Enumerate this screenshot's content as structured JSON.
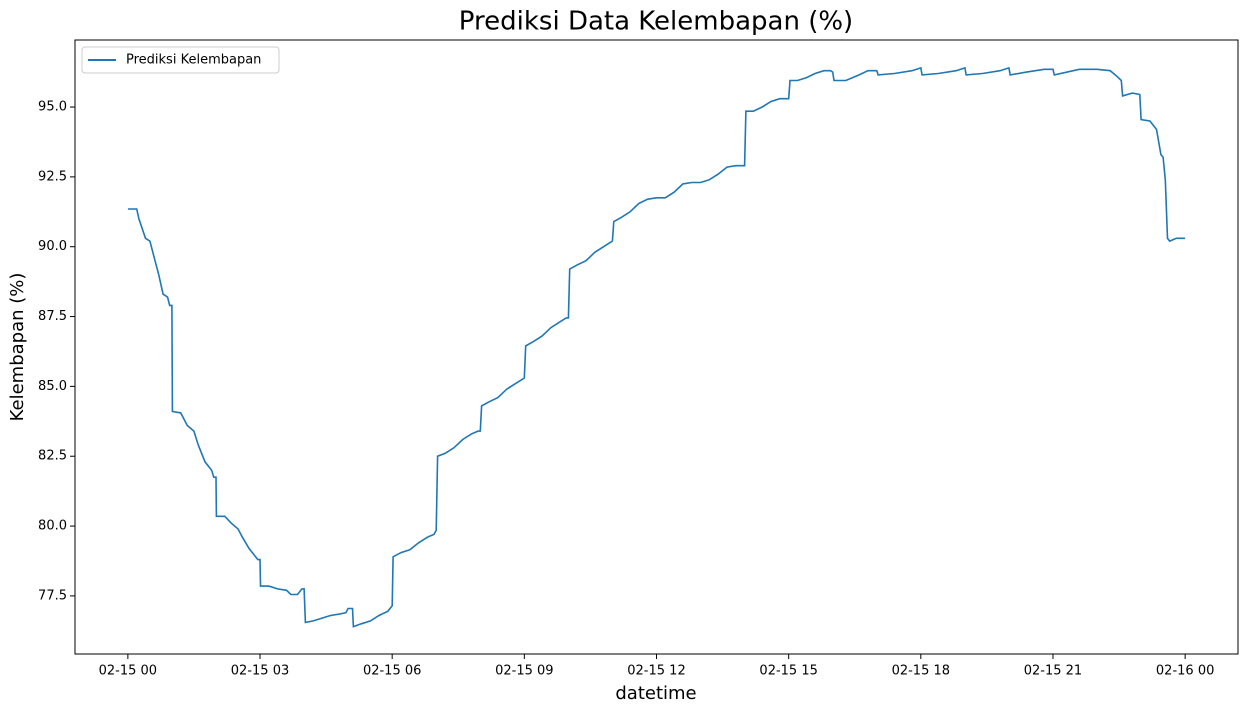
{
  "chart_data": {
    "type": "line",
    "title": "Prediksi Data Kelembapan (%)",
    "x_label": "datetime",
    "y_label": "Kelembapan (%)",
    "series": [
      {
        "name": "Prediksi Kelembapan",
        "color": "#1f77b4",
        "x": [
          0,
          0.2,
          0.25,
          0.4,
          0.5,
          0.6,
          0.7,
          0.8,
          0.9,
          0.95,
          1.0,
          1.01,
          1.2,
          1.35,
          1.5,
          1.6,
          1.75,
          1.9,
          1.95,
          2.0,
          2.01,
          2.2,
          2.35,
          2.5,
          2.6,
          2.75,
          2.9,
          2.95,
          3.0,
          3.01,
          3.2,
          3.4,
          3.6,
          3.7,
          3.85,
          3.95,
          4.0,
          4.03,
          4.2,
          4.4,
          4.6,
          4.8,
          4.95,
          5.0,
          5.1,
          5.12,
          5.3,
          5.5,
          5.7,
          5.9,
          6.0,
          6.02,
          6.2,
          6.4,
          6.6,
          6.8,
          6.95,
          7.0,
          7.03,
          7.2,
          7.4,
          7.6,
          7.8,
          7.95,
          8.0,
          8.03,
          8.2,
          8.4,
          8.6,
          8.8,
          9.0,
          9.03,
          9.2,
          9.4,
          9.6,
          9.8,
          9.95,
          10.0,
          10.03,
          10.2,
          10.4,
          10.6,
          10.8,
          11.0,
          11.03,
          11.2,
          11.4,
          11.6,
          11.8,
          12.0,
          12.2,
          12.4,
          12.6,
          12.8,
          13.0,
          13.2,
          13.4,
          13.6,
          13.8,
          14.0,
          14.03,
          14.2,
          14.4,
          14.6,
          14.8,
          15.0,
          15.03,
          15.2,
          15.4,
          15.6,
          15.8,
          15.95,
          16.0,
          16.03,
          16.3,
          16.6,
          16.8,
          17.0,
          17.03,
          17.4,
          17.8,
          18.0,
          18.03,
          18.4,
          18.8,
          19.0,
          19.03,
          19.4,
          19.8,
          20.0,
          20.03,
          20.4,
          20.8,
          21.0,
          21.03,
          21.6,
          22.0,
          22.3,
          22.45,
          22.55,
          22.58,
          22.8,
          22.97,
          23.0,
          23.2,
          23.35,
          23.45,
          23.5,
          23.55,
          23.6,
          23.65,
          23.8,
          24.0
        ],
        "values": [
          91.35,
          91.35,
          91.0,
          90.3,
          90.2,
          89.6,
          89.0,
          88.3,
          88.2,
          87.9,
          87.9,
          84.1,
          84.05,
          83.6,
          83.4,
          82.9,
          82.3,
          82.0,
          81.75,
          81.75,
          80.35,
          80.35,
          80.1,
          79.9,
          79.6,
          79.2,
          78.9,
          78.8,
          78.8,
          77.85,
          77.85,
          77.75,
          77.7,
          77.55,
          77.55,
          77.75,
          77.75,
          76.55,
          76.6,
          76.7,
          76.8,
          76.85,
          76.9,
          77.05,
          77.05,
          76.4,
          76.5,
          76.6,
          76.8,
          76.95,
          77.15,
          78.9,
          79.05,
          79.15,
          79.4,
          79.6,
          79.7,
          79.85,
          82.5,
          82.6,
          82.8,
          83.1,
          83.3,
          83.4,
          83.4,
          84.3,
          84.45,
          84.6,
          84.9,
          85.1,
          85.3,
          86.45,
          86.6,
          86.8,
          87.1,
          87.3,
          87.45,
          87.45,
          89.2,
          89.35,
          89.5,
          89.8,
          90.0,
          90.2,
          90.9,
          91.05,
          91.25,
          91.55,
          91.7,
          91.75,
          91.75,
          91.95,
          92.25,
          92.3,
          92.3,
          92.4,
          92.6,
          92.85,
          92.9,
          92.9,
          94.85,
          94.85,
          95.0,
          95.2,
          95.3,
          95.3,
          95.95,
          95.95,
          96.05,
          96.2,
          96.3,
          96.3,
          96.25,
          95.95,
          95.95,
          96.15,
          96.3,
          96.3,
          96.15,
          96.2,
          96.3,
          96.4,
          96.15,
          96.2,
          96.3,
          96.4,
          96.15,
          96.2,
          96.3,
          96.4,
          96.15,
          96.25,
          96.35,
          96.35,
          96.15,
          96.35,
          96.35,
          96.3,
          96.1,
          95.95,
          95.4,
          95.5,
          95.45,
          94.55,
          94.5,
          94.2,
          93.3,
          93.2,
          92.4,
          90.3,
          90.2,
          90.3,
          90.3
        ]
      }
    ],
    "xlim": [
      -1.2,
      25.2
    ],
    "xticks": [
      {
        "value": 0,
        "label": "02-15 00"
      },
      {
        "value": 3,
        "label": "02-15 03"
      },
      {
        "value": 6,
        "label": "02-15 06"
      },
      {
        "value": 9,
        "label": "02-15 09"
      },
      {
        "value": 12,
        "label": "02-15 12"
      },
      {
        "value": 15,
        "label": "02-15 15"
      },
      {
        "value": 18,
        "label": "02-15 18"
      },
      {
        "value": 21,
        "label": "02-15 21"
      },
      {
        "value": 24,
        "label": "02-16 00"
      }
    ],
    "ylim": [
      75.42,
      97.4
    ],
    "yticks": [
      {
        "value": 77.5,
        "label": "77.5"
      },
      {
        "value": 80,
        "label": "80.0"
      },
      {
        "value": 82.5,
        "label": "82.5"
      },
      {
        "value": 85,
        "label": "85.0"
      },
      {
        "value": 87.5,
        "label": "87.5"
      },
      {
        "value": 90,
        "label": "90.0"
      },
      {
        "value": 92.5,
        "label": "92.5"
      },
      {
        "value": 95,
        "label": "95.0"
      }
    ],
    "grid": false,
    "legend": "upper-left"
  }
}
